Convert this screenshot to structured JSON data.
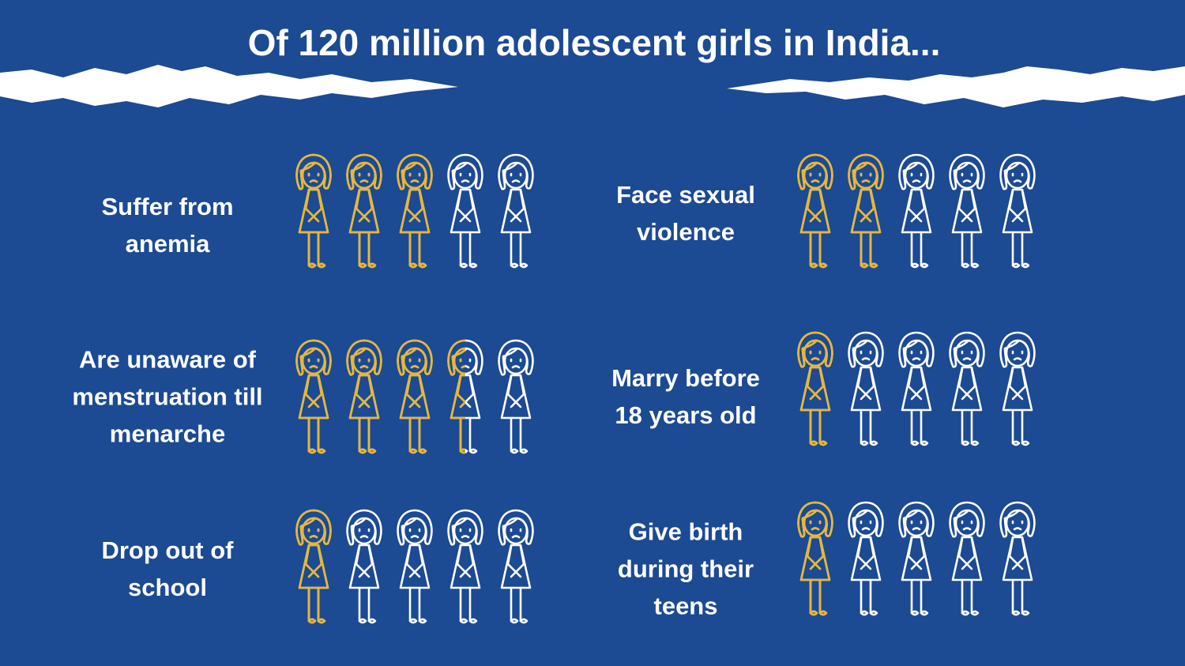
{
  "chart_data": {
    "type": "pictograph",
    "title": "Of 120 million adolescent girls in India...",
    "categories": [
      "Suffer from anemia",
      "Face sexual violence",
      "Are unaware of menstruation till menarche",
      "Marry before 18 years old",
      "Drop out of school",
      "Give birth during their teens"
    ],
    "values": [
      3,
      2,
      3.5,
      1,
      1,
      1
    ],
    "xlim": [
      0,
      5
    ],
    "color": "#e9b732",
    "base_color": "#ffffff"
  }
}
